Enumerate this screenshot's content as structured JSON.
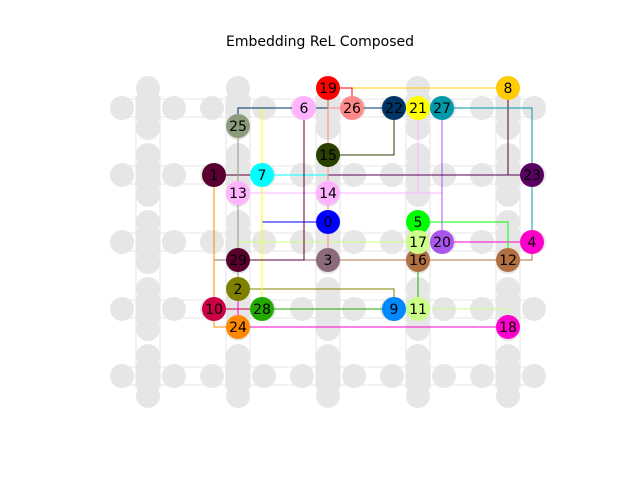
{
  "title": "Embedding ReL Composed",
  "grid": {
    "cols": 5,
    "rows": 5,
    "background_color": "#e6e6e6"
  },
  "colored_nodes": [
    {
      "label": "0",
      "cell": [
        2,
        2
      ],
      "color": "#0000ff",
      "offset": "top"
    },
    {
      "label": "1",
      "cell": [
        1,
        1
      ],
      "color": "#5a0030",
      "offset": "left"
    },
    {
      "label": "2",
      "cell": [
        1,
        3
      ],
      "color": "#808000",
      "offset": "top"
    },
    {
      "label": "3",
      "cell": [
        2,
        2
      ],
      "color": "#8b6b7b",
      "offset": "bottom"
    },
    {
      "label": "4",
      "cell": [
        4,
        2
      ],
      "color": "#ff00cc",
      "offset": "right"
    },
    {
      "label": "5",
      "cell": [
        3,
        2
      ],
      "color": "#00ff00",
      "offset": "top"
    },
    {
      "label": "6",
      "cell": [
        2,
        0
      ],
      "color": "#ffb3ff",
      "offset": "left"
    },
    {
      "label": "7",
      "cell": [
        1,
        1
      ],
      "color": "#00ffff",
      "offset": "right"
    },
    {
      "label": "8",
      "cell": [
        4,
        0
      ],
      "color": "#ffcc00",
      "offset": "top"
    },
    {
      "label": "9",
      "cell": [
        3,
        3
      ],
      "color": "#0088ff",
      "offset": "left"
    },
    {
      "label": "10",
      "cell": [
        1,
        3
      ],
      "color": "#cc0044",
      "offset": "left"
    },
    {
      "label": "11",
      "cell": [
        3,
        3
      ],
      "color": "#ccff88",
      "offset": "center"
    },
    {
      "label": "12",
      "cell": [
        4,
        2
      ],
      "color": "#b07040",
      "offset": "bottom"
    },
    {
      "label": "13",
      "cell": [
        1,
        1
      ],
      "color": "#ffb3ff",
      "offset": "bottom"
    },
    {
      "label": "14",
      "cell": [
        2,
        1
      ],
      "color": "#ffb3ff",
      "offset": "bottom"
    },
    {
      "label": "15",
      "cell": [
        2,
        1
      ],
      "color": "#2a4000",
      "offset": "top"
    },
    {
      "label": "16",
      "cell": [
        3,
        2
      ],
      "color": "#b07040",
      "offset": "bottom"
    },
    {
      "label": "17",
      "cell": [
        3,
        2
      ],
      "color": "#ccff88",
      "offset": "center"
    },
    {
      "label": "18",
      "cell": [
        4,
        3
      ],
      "color": "#ff00cc",
      "offset": "bottom"
    },
    {
      "label": "19",
      "cell": [
        2,
        0
      ],
      "color": "#ff0000",
      "offset": "top"
    },
    {
      "label": "20",
      "cell": [
        3,
        2
      ],
      "color": "#aa55ee",
      "offset": "right"
    },
    {
      "label": "21",
      "cell": [
        3,
        0
      ],
      "color": "#ffff00",
      "offset": "center"
    },
    {
      "label": "22",
      "cell": [
        3,
        0
      ],
      "color": "#003366",
      "offset": "left"
    },
    {
      "label": "23",
      "cell": [
        4,
        1
      ],
      "color": "#5a0060",
      "offset": "right"
    },
    {
      "label": "24",
      "cell": [
        1,
        3
      ],
      "color": "#ff8800",
      "offset": "bottom"
    },
    {
      "label": "25",
      "cell": [
        1,
        0
      ],
      "color": "#8b9b7b",
      "offset": "bottom"
    },
    {
      "label": "26",
      "cell": [
        2,
        0
      ],
      "color": "#ff8888",
      "offset": "right"
    },
    {
      "label": "27",
      "cell": [
        3,
        0
      ],
      "color": "#0099aa",
      "offset": "right"
    },
    {
      "label": "28",
      "cell": [
        1,
        3
      ],
      "color": "#22aa00",
      "offset": "right"
    },
    {
      "label": "29",
      "cell": [
        1,
        2
      ],
      "color": "#5a0030",
      "offset": "bottom"
    }
  ]
}
